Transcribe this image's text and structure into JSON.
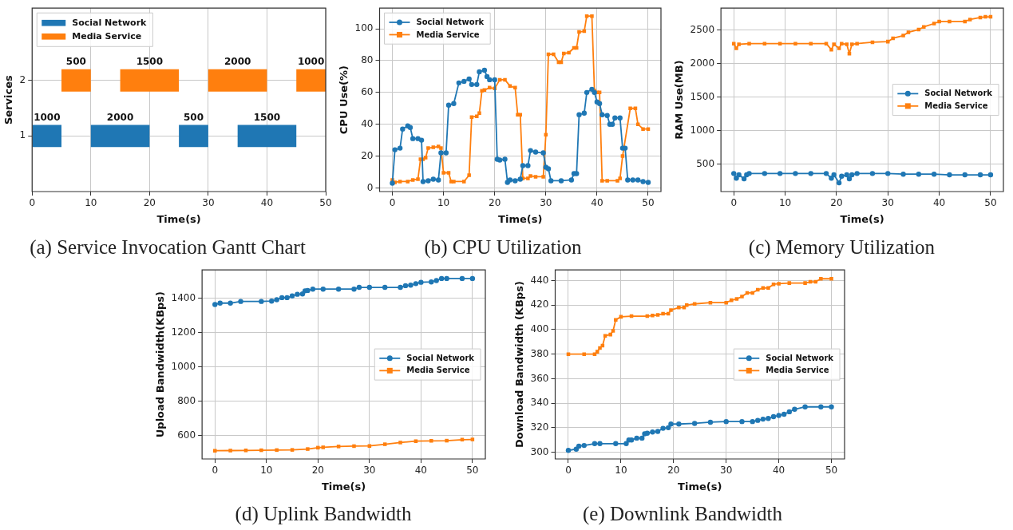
{
  "chart_data": [
    {
      "type": "bar",
      "orientation": "horizontal",
      "xlabel": "Time(s)",
      "ylabel": "Services",
      "categories": [
        "2",
        "1"
      ],
      "xlim": [
        0,
        50
      ],
      "xticks": [
        0,
        10,
        20,
        30,
        40,
        50
      ],
      "grid": true,
      "legend": "top left",
      "series": [
        {
          "name": "Social Network",
          "color": "#1f77b4",
          "values": [
            null,
            5
          ],
          "base": [
            null,
            0
          ]
        },
        {
          "color": "#1f77b4",
          "values": [
            null,
            10
          ],
          "base": [
            null,
            10
          ]
        },
        {
          "color": "#1f77b4",
          "values": [
            null,
            5
          ],
          "base": [
            null,
            25
          ]
        },
        {
          "color": "#1f77b4",
          "values": [
            null,
            10
          ],
          "base": [
            null,
            35
          ]
        },
        {
          "name": "Media Service",
          "color": "#ff7f0e",
          "values": [
            5,
            null
          ],
          "base": [
            5,
            null
          ]
        },
        {
          "color": "#ff7f0e",
          "values": [
            10,
            null
          ],
          "base": [
            15,
            null
          ]
        },
        {
          "color": "#ff7f0e",
          "values": [
            10,
            null
          ],
          "base": [
            30,
            null
          ]
        },
        {
          "color": "#ff7f0e",
          "values": [
            5,
            null
          ],
          "base": [
            45,
            null
          ]
        }
      ],
      "title": "(a) Service Invocation Gantt Chart",
      "annotations": [
        "1000",
        "2000",
        "500",
        "1500",
        "500",
        "1500",
        "2000",
        "1000"
      ]
    },
    {
      "type": "line",
      "xlabel": "Time(s)",
      "ylabel": "CPU Use(%)",
      "xlim": [
        -2.5,
        52.5
      ],
      "xticks": [
        0,
        10,
        20,
        30,
        40,
        50
      ],
      "ylim": [
        -2.3,
        113
      ],
      "yticks": [
        0,
        20,
        40,
        60,
        80,
        100
      ],
      "grid": true,
      "legend": "top left",
      "series": [
        {
          "name": "Social Network",
          "color": "#1f77b4",
          "marker": "circle",
          "x": [
            0,
            0.5,
            1.5,
            2,
            3,
            3.5,
            4,
            5,
            5.7,
            6,
            7,
            8,
            9,
            9.5,
            10.5,
            11,
            12,
            13,
            14,
            15,
            15.5,
            16.5,
            17,
            18,
            18.5,
            19,
            20,
            20.5,
            21,
            22,
            22.5,
            23,
            24,
            25,
            25.5,
            26.5,
            27,
            28,
            29.5,
            30,
            30.5,
            31,
            33,
            35,
            35.5,
            36,
            36.5,
            37.5,
            38,
            39,
            39.5,
            40,
            40.5,
            41,
            42,
            42.5,
            43,
            43.5,
            44.5,
            45,
            45.5,
            46,
            47,
            48,
            49,
            50
          ],
          "values": [
            3,
            24,
            25,
            37,
            39,
            38,
            31,
            31,
            30,
            4,
            4.5,
            5.5,
            5,
            22,
            22,
            52,
            53,
            66,
            67,
            68.5,
            65,
            65,
            73,
            74,
            70,
            68,
            68,
            18,
            17.5,
            18,
            3.5,
            5,
            4.5,
            5.5,
            14,
            14,
            23.5,
            22.5,
            22,
            13,
            12,
            4.5,
            4.5,
            5,
            9,
            9,
            46,
            47,
            60,
            62,
            60,
            54,
            53,
            46,
            45.5,
            40,
            40,
            44,
            44,
            25,
            25,
            5,
            5,
            5,
            4,
            3.5
          ]
        },
        {
          "name": "Media Service",
          "color": "#ff7f0e",
          "marker": "square",
          "x": [
            0,
            0.5,
            1.5,
            3,
            4,
            5,
            5.5,
            6,
            6.5,
            7,
            8,
            9,
            9.5,
            10,
            11,
            11.5,
            12,
            14,
            15,
            15.5,
            16.5,
            17,
            17.5,
            18,
            19,
            20,
            21,
            22,
            23,
            24,
            24.5,
            25,
            25.5,
            26.5,
            27,
            28,
            29.5,
            30,
            30.5,
            31.5,
            32.5,
            33,
            33.5,
            34.5,
            35.5,
            36,
            36.5,
            37.5,
            38,
            39,
            39.5,
            40,
            40.5,
            41,
            42,
            44,
            44.5,
            45,
            46.5,
            47.5,
            48,
            49,
            50
          ],
          "values": [
            5,
            3.5,
            4,
            4,
            5,
            5.5,
            18,
            18,
            19,
            25,
            25.5,
            26,
            25,
            9.5,
            9.5,
            4,
            4,
            4,
            8,
            44.5,
            45,
            47,
            61,
            61.5,
            63,
            62.5,
            68,
            68,
            64,
            63,
            46,
            46,
            6,
            6,
            7.5,
            7,
            7,
            33.5,
            84,
            84,
            79,
            79,
            84.5,
            85,
            88,
            88,
            98,
            98.5,
            108,
            108,
            61,
            60,
            60,
            4.5,
            4.5,
            4.5,
            6,
            20,
            50,
            50,
            40,
            37,
            37
          ]
        }
      ],
      "title": "(b) CPU Utilization"
    },
    {
      "type": "line",
      "xlabel": "Time(s)",
      "ylabel": "RAM Use(MB)",
      "xlim": [
        -2.5,
        52.5
      ],
      "xticks": [
        0,
        10,
        20,
        30,
        40,
        50
      ],
      "ylim": [
        90,
        2830
      ],
      "yticks": [
        500,
        1000,
        1500,
        2000,
        2500
      ],
      "grid": true,
      "legend": "right",
      "series": [
        {
          "name": "Social Network",
          "color": "#1f77b4",
          "marker": "circle",
          "x": [
            0,
            0.5,
            1,
            2,
            2.5,
            3,
            6,
            9,
            12,
            15,
            18,
            19,
            19.5,
            20.5,
            21,
            22,
            22.5,
            23,
            24,
            27,
            30,
            33,
            36,
            39,
            42,
            45,
            48,
            50
          ],
          "values": [
            360,
            290,
            340,
            280,
            340,
            360,
            360,
            360,
            360,
            360,
            360,
            290,
            340,
            220,
            320,
            340,
            280,
            340,
            360,
            360,
            360,
            350,
            350,
            350,
            340,
            340,
            340,
            340
          ]
        },
        {
          "name": "Media Service",
          "color": "#ff7f0e",
          "marker": "square",
          "x": [
            0,
            0.5,
            1,
            3,
            6,
            9,
            12,
            15,
            18,
            19,
            19.5,
            20.5,
            21,
            22,
            22.5,
            23,
            24,
            27,
            30,
            31,
            33,
            34,
            36,
            37,
            39,
            40,
            42,
            45,
            46,
            48,
            49,
            50
          ],
          "values": [
            2300,
            2230,
            2290,
            2300,
            2300,
            2300,
            2300,
            2300,
            2300,
            2210,
            2290,
            2230,
            2300,
            2290,
            2150,
            2290,
            2300,
            2320,
            2330,
            2380,
            2420,
            2470,
            2510,
            2550,
            2600,
            2630,
            2630,
            2630,
            2660,
            2690,
            2700,
            2700
          ]
        }
      ],
      "title": "(c) Memory Utilization"
    },
    {
      "type": "line",
      "xlabel": "Time(s)",
      "ylabel": "Upload Bandwidth(KBps)",
      "xlim": [
        -2.5,
        52.5
      ],
      "xticks": [
        0,
        10,
        20,
        30,
        40,
        50
      ],
      "ylim": [
        462,
        1567
      ],
      "yticks": [
        600,
        800,
        1000,
        1200,
        1400
      ],
      "grid": true,
      "legend": "right",
      "series": [
        {
          "name": "Social Network",
          "color": "#1f77b4",
          "marker": "circle",
          "x": [
            0,
            1,
            3,
            5,
            9,
            11,
            12,
            13,
            14,
            15,
            16,
            17,
            17.5,
            18,
            19,
            21,
            24,
            27,
            28,
            30,
            33,
            36,
            37,
            38,
            39,
            40,
            42,
            43,
            44,
            45,
            48,
            50
          ],
          "values": [
            1365,
            1373,
            1373,
            1383,
            1383,
            1385,
            1393,
            1405,
            1405,
            1415,
            1425,
            1427,
            1445,
            1447,
            1455,
            1455,
            1455,
            1455,
            1465,
            1465,
            1465,
            1465,
            1475,
            1478,
            1487,
            1495,
            1497,
            1505,
            1517,
            1517,
            1517,
            1517
          ]
        },
        {
          "name": "Media Service",
          "color": "#ff7f0e",
          "marker": "square",
          "x": [
            0,
            3,
            6,
            9,
            12,
            15,
            18,
            20,
            21,
            24,
            27,
            30,
            33,
            36,
            39,
            42,
            45,
            48,
            50
          ],
          "values": [
            510,
            511,
            512,
            513,
            514,
            515,
            520,
            528,
            530,
            535,
            537,
            538,
            548,
            558,
            566,
            568,
            569,
            575,
            576
          ]
        }
      ],
      "title": "(d) Uplink Bandwidth"
    },
    {
      "type": "line",
      "xlabel": "Time(s)",
      "ylabel": "Download Bandwidth (KBps)",
      "xlim": [
        -2.5,
        52.5
      ],
      "xticks": [
        0,
        10,
        20,
        30,
        40,
        50
      ],
      "ylim": [
        294.5,
        448.7
      ],
      "yticks": [
        300,
        320,
        340,
        360,
        380,
        400,
        420,
        440
      ],
      "grid": true,
      "legend": "right",
      "series": [
        {
          "name": "Social Network",
          "color": "#1f77b4",
          "marker": "circle",
          "x": [
            0,
            1.5,
            2,
            3,
            5,
            6,
            9,
            11,
            11.5,
            12,
            13,
            14,
            14.5,
            15,
            16,
            17,
            18,
            19,
            19.5,
            21,
            24,
            27,
            30,
            33,
            35,
            36,
            37,
            38,
            39,
            40,
            41,
            42,
            43,
            45,
            48,
            50
          ],
          "values": [
            301.5,
            302.5,
            305,
            305.5,
            307,
            307,
            307,
            307,
            310,
            310,
            311.5,
            311.5,
            315,
            315.5,
            316.5,
            317,
            319.5,
            320,
            323,
            323,
            323.5,
            324.5,
            325,
            325,
            325,
            326,
            327,
            327.5,
            329,
            330,
            331,
            333,
            335,
            337,
            337,
            337
          ]
        },
        {
          "name": "Media Service",
          "color": "#ff7f0e",
          "marker": "square",
          "x": [
            0,
            3,
            5,
            5.5,
            6,
            6.5,
            7,
            8,
            8.5,
            9,
            10,
            12,
            15,
            16,
            17,
            18,
            19,
            19.5,
            21,
            22,
            22.5,
            24,
            27,
            30,
            31,
            32,
            33,
            34,
            35,
            36,
            37,
            38,
            39,
            40,
            42,
            45,
            46,
            47,
            48,
            50
          ],
          "values": [
            380,
            380,
            380,
            382,
            385,
            387,
            395,
            396,
            399,
            408,
            410.5,
            411,
            411,
            411.5,
            412,
            413,
            413,
            416,
            418,
            418,
            420,
            421,
            422,
            422,
            424,
            425,
            427,
            430,
            430,
            432.5,
            434,
            434,
            437,
            437.5,
            438,
            438,
            439,
            439,
            441.5,
            441.5
          ]
        }
      ],
      "title": "(e) Downlink Bandwidth"
    }
  ]
}
